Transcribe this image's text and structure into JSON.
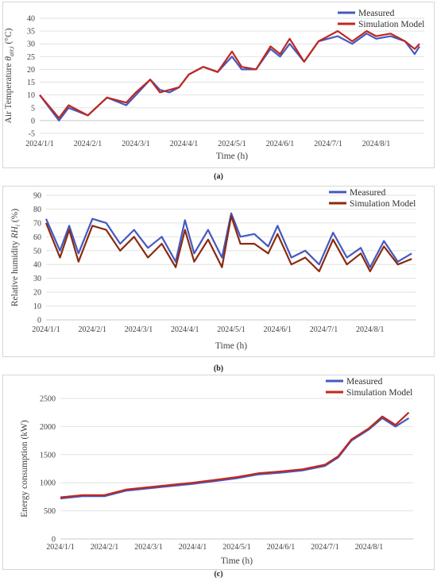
{
  "chart_data": [
    {
      "id": "a",
      "type": "line",
      "caption": "(a)",
      "title": "",
      "xlabel": "Time (h)",
      "ylabel_pre": "Air Temperature ",
      "ylabel_sym": "θ",
      "ylabel_sub": "air,i",
      "ylabel_post": " (°C)",
      "ylim": [
        -5,
        40
      ],
      "yticks": [
        -5,
        0,
        5,
        10,
        15,
        20,
        25,
        30,
        35,
        40
      ],
      "xticks": [
        "2024/1/1",
        "2024/2/1",
        "2024/3/1",
        "2024/4/1",
        "2024/5/1",
        "2024/6/1",
        "2024/7/1",
        "2024/8/1"
      ],
      "grid": true,
      "legend_position": "top-right",
      "series": [
        {
          "name": "Measured",
          "color": "#4459c0"
        },
        {
          "name": "Simulation Model",
          "color": "#c0271e"
        }
      ],
      "x_months": [
        0,
        0.4,
        0.6,
        1.0,
        1.4,
        1.8,
        2.0,
        2.3,
        2.5,
        2.7,
        2.9,
        3.1,
        3.4,
        3.7,
        4.0,
        4.2,
        4.5,
        4.8,
        5.0,
        5.2,
        5.5,
        5.8,
        6.0,
        6.2,
        6.5,
        6.8,
        7.0,
        7.3,
        7.6,
        7.8,
        7.9
      ],
      "measured": [
        10,
        0,
        5,
        2,
        9,
        6,
        10,
        16,
        12,
        11,
        13,
        18,
        21,
        19,
        25,
        20,
        20,
        28,
        25,
        30,
        23,
        31,
        32,
        33,
        30,
        34,
        32,
        33,
        31,
        26,
        29
      ],
      "simulated": [
        10,
        1,
        6,
        2,
        9,
        7,
        11,
        16,
        11,
        12,
        13,
        18,
        21,
        19,
        27,
        21,
        20,
        29,
        26,
        32,
        23,
        31,
        33,
        35,
        31,
        35,
        33,
        34,
        31,
        28,
        30
      ]
    },
    {
      "id": "b",
      "type": "line",
      "caption": "(b)",
      "title": "",
      "xlabel": "Time (h)",
      "ylabel_pre": "Relative humidity ",
      "ylabel_sym": "RH",
      "ylabel_sub": "i",
      "ylabel_post": " (%)",
      "ylim": [
        0,
        90
      ],
      "yticks": [
        0,
        10,
        20,
        30,
        40,
        50,
        60,
        70,
        80,
        90
      ],
      "xticks": [
        "2024/1/1",
        "2024/2/1",
        "2024/3/1",
        "2024/4/1",
        "2024/5/1",
        "2024/6/1",
        "2024/7/1",
        "2024/8/1"
      ],
      "grid": true,
      "legend_position": "top-right",
      "series": [
        {
          "name": "Measured",
          "color": "#4459c0"
        },
        {
          "name": "Simulation Model",
          "color": "#8a2a0f"
        }
      ],
      "x_months": [
        0,
        0.3,
        0.5,
        0.7,
        1.0,
        1.3,
        1.6,
        1.9,
        2.2,
        2.5,
        2.8,
        3.0,
        3.2,
        3.5,
        3.8,
        4.0,
        4.2,
        4.5,
        4.8,
        5.0,
        5.3,
        5.6,
        5.9,
        6.2,
        6.5,
        6.8,
        7.0,
        7.3,
        7.6,
        7.9
      ],
      "measured": [
        73,
        50,
        68,
        48,
        73,
        70,
        55,
        65,
        52,
        60,
        42,
        72,
        48,
        65,
        45,
        77,
        60,
        62,
        53,
        68,
        45,
        50,
        40,
        63,
        45,
        52,
        38,
        57,
        42,
        48
      ],
      "simulated": [
        70,
        45,
        65,
        42,
        68,
        65,
        50,
        60,
        45,
        55,
        38,
        65,
        42,
        58,
        38,
        75,
        55,
        55,
        48,
        62,
        40,
        45,
        35,
        58,
        40,
        48,
        35,
        53,
        40,
        44
      ]
    },
    {
      "id": "c",
      "type": "line",
      "caption": "(c)",
      "title": "",
      "xlabel": "Time (h)",
      "ylabel": "Energy consumption (kW)",
      "ylim": [
        0,
        2500
      ],
      "yticks": [
        0,
        500,
        1000,
        1500,
        2000,
        2500
      ],
      "xticks": [
        "2024/1/1",
        "2024/2/1",
        "2024/3/1",
        "2024/4/1",
        "2024/5/1",
        "2024/6/1",
        "2024/7/1",
        "2024/8/1"
      ],
      "grid": true,
      "legend_position": "top-right",
      "series": [
        {
          "name": "Measured",
          "color": "#4459c0"
        },
        {
          "name": "Simulation Model",
          "color": "#c0271e"
        }
      ],
      "x_months": [
        0,
        0.5,
        1.0,
        1.5,
        2.0,
        2.5,
        3.0,
        3.5,
        4.0,
        4.5,
        5.0,
        5.5,
        6.0,
        6.3,
        6.6,
        7.0,
        7.3,
        7.6,
        7.9
      ],
      "measured": [
        720,
        760,
        760,
        860,
        900,
        940,
        980,
        1030,
        1080,
        1150,
        1180,
        1220,
        1300,
        1450,
        1750,
        1950,
        2150,
        2000,
        2150
      ],
      "simulated": [
        740,
        780,
        780,
        880,
        920,
        960,
        1000,
        1050,
        1100,
        1170,
        1200,
        1240,
        1320,
        1470,
        1770,
        1970,
        2180,
        2030,
        2250
      ]
    }
  ]
}
